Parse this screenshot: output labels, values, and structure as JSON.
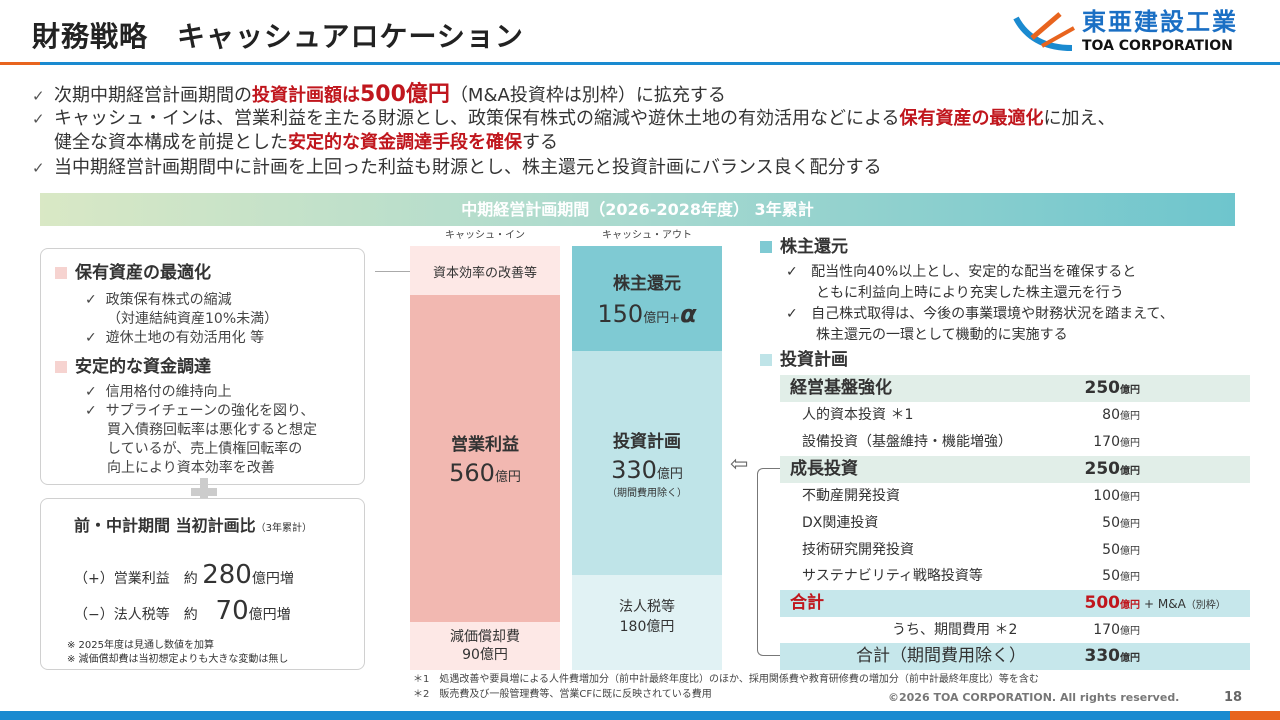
{
  "header": {
    "title": "財務戦略　キャッシュアロケーション",
    "logo_jp": "東亜建設工業",
    "logo_en": "TOA CORPORATION"
  },
  "bullets": [
    {
      "a": "次期中期経営計画期間の",
      "r": "投資計画額は",
      "rb": "500億円",
      "b": "（M&A投資枠は別枠）に拡充する"
    },
    {
      "a": "キャッシュ・インは、営業利益を主たる財源とし、政策保有株式の縮減や遊休土地の有効活用などによる",
      "r": "保有資産の最適化",
      "b": "に加え、"
    },
    {
      "a": "健全な資本構成を前提とした",
      "r": "安定的な資金調達手段を確保",
      "b": "する"
    },
    {
      "a": "当中期経営計画期間中に計画を上回った利益も財源とし、株主還元と投資計画にバランス良く配分する"
    }
  ],
  "banner": "中期経営計画期間（2026-2028年度） 3年累計",
  "left": {
    "s1_title": "保有資産の最適化",
    "s1_items": [
      "政策保有株式の縮減",
      "（対連結純資産10%未満）",
      "遊休土地の有効活用化 等"
    ],
    "s2_title": "安定的な資金調達",
    "s2_items": [
      "信用格付の維持向上",
      "サプライチェーンの強化を図り、",
      "買入債務回転率は悪化すると想定",
      "しているが、売上債権回転率の",
      "向上により資本効率を改善"
    ],
    "box2_title": "前・中計期間 当初計画比",
    "box2_sub": "（3年累計）",
    "r1_label": "（+）営業利益　約",
    "r1_val": "280",
    "r1_unit": "億円増",
    "r2_label": "（−）法人税等　約",
    "r2_val": "70",
    "r2_unit": "億円増",
    "notes": [
      "※ 2025年度は見通し数値を加算",
      "※ 減価償却費は当初想定よりも大きな変動は無し"
    ]
  },
  "cash_in": {
    "header": "キャッシュ・イン",
    "top": "資本効率の改善等",
    "main_label": "営業利益",
    "main_val": "560",
    "unit": "億円",
    "bottom_label": "減価償却費",
    "bottom_val": "90億円"
  },
  "cash_out": {
    "header": "キャッシュ・アウト",
    "top_label": "株主還元",
    "top_val": "150",
    "top_unit": "億円+",
    "alpha": "α",
    "mid_label": "投資計画",
    "mid_val": "330",
    "mid_unit": "億円",
    "mid_note": "（期間費用除く）",
    "bottom_label": "法人税等",
    "bottom_val": "180億円"
  },
  "right": {
    "s1_title": "株主還元",
    "s1_items": [
      "配当性向40%以上とし、安定的な配当を確保すると",
      "ともに利益向上時により充実した株主還元を行う",
      "自己株式取得は、今後の事業環境や財務状況を踏まえて、",
      "株主還元の一環として機動的に実施する"
    ],
    "s2_title": "投資計画",
    "unit": "億円",
    "rows": [
      {
        "label": "経営基盤強化",
        "value": "250"
      },
      {
        "label": "人的資本投資 ＊1",
        "value": "80"
      },
      {
        "label": "設備投資（基盤維持・機能増強）",
        "value": "170"
      },
      {
        "label": "成長投資",
        "value": "250"
      },
      {
        "label": "不動産開発投資",
        "value": "100"
      },
      {
        "label": "DX関連投資",
        "value": "50"
      },
      {
        "label": "技術研究開発投資",
        "value": "50"
      },
      {
        "label": "サステナビリティ戦略投資等",
        "value": "50"
      },
      {
        "label": "合計",
        "value": "500"
      },
      {
        "label": "うち、期間費用 ＊2",
        "value": "170"
      },
      {
        "label": "合計（期間費用除く）",
        "value": "330"
      }
    ],
    "ma": "+ M&A",
    "ma_note": "（別枠）"
  },
  "footnotes": [
    "＊1　処遇改善や要員増による人件費増加分（前中計最終年度比）のほか、採用関係費や教育研修費の増加分（前中計最終年度比）等を含む",
    "＊2　販売費及び一般管理費等、営業CFに既に反映されている費用"
  ],
  "footer": {
    "copyright": "©2026 TOA CORPORATION. All rights reserved.",
    "page": "18"
  },
  "colors": {
    "accent_red": "#c0161d",
    "blue": "#1a8ad0",
    "orange": "#e8641e"
  }
}
